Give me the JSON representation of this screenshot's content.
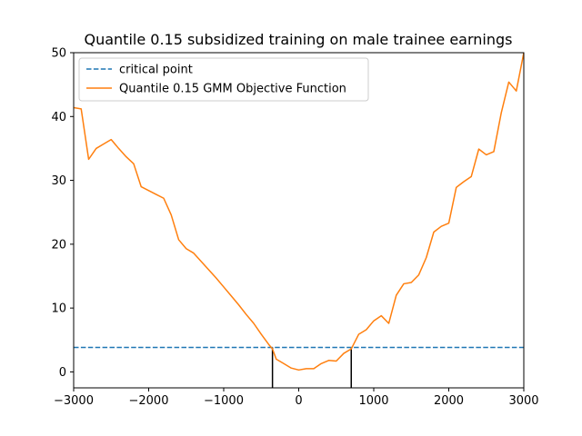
{
  "chart_data": {
    "type": "line",
    "title": "Quantile 0.15 subsidized training on male trainee earnings",
    "xlabel": "",
    "ylabel": "",
    "xlim": [
      -3000,
      3000
    ],
    "ylim": [
      -2.5,
      50
    ],
    "xticks": [
      -3000,
      -2000,
      -1000,
      0,
      1000,
      2000,
      3000
    ],
    "xtick_labels": [
      "−3000",
      "−2000",
      "−1000",
      "0",
      "1000",
      "2000",
      "3000"
    ],
    "yticks": [
      0,
      10,
      20,
      30,
      40,
      50
    ],
    "ytick_labels": [
      "0",
      "10",
      "20",
      "30",
      "40",
      "50"
    ],
    "grid": false,
    "legend_position": "top-left",
    "series": [
      {
        "name": "critical point",
        "style": "dashed",
        "color": "#1f77b4",
        "y_constant": 3.84
      },
      {
        "name": "Quantile 0.15 GMM Objective Function",
        "style": "solid",
        "color": "#ff7f0e",
        "x": [
          -3000,
          -2900,
          -2800,
          -2700,
          -2600,
          -2500,
          -2400,
          -2300,
          -2200,
          -2100,
          -2000,
          -1900,
          -1800,
          -1700,
          -1600,
          -1500,
          -1400,
          -1300,
          -1200,
          -1100,
          -1000,
          -900,
          -800,
          -700,
          -600,
          -500,
          -400,
          -350,
          -300,
          -200,
          -100,
          0,
          100,
          200,
          300,
          400,
          500,
          600,
          700,
          800,
          900,
          1000,
          1100,
          1200,
          1300,
          1400,
          1500,
          1600,
          1700,
          1800,
          1900,
          2000,
          2100,
          2200,
          2300,
          2400,
          2500,
          2600,
          2700,
          2800,
          2900,
          3000
        ],
        "values": [
          41.4,
          41.2,
          33.3,
          35.0,
          35.7,
          36.4,
          35.0,
          33.7,
          32.6,
          29.0,
          28.4,
          27.8,
          27.2,
          24.6,
          20.7,
          19.3,
          18.6,
          17.3,
          16.0,
          14.7,
          13.3,
          11.9,
          10.5,
          9.0,
          7.6,
          5.9,
          4.3,
          3.6,
          2.0,
          1.3,
          0.6,
          0.3,
          0.5,
          0.5,
          1.3,
          1.8,
          1.7,
          2.9,
          3.6,
          5.9,
          6.6,
          8.0,
          8.8,
          7.6,
          12.0,
          13.8,
          14.0,
          15.2,
          17.9,
          21.9,
          22.8,
          23.3,
          28.9,
          29.8,
          30.6,
          34.9,
          34.0,
          34.5,
          40.6,
          45.4,
          44.0,
          50.0
        ]
      }
    ],
    "critical_intersections": [
      -350,
      700
    ]
  }
}
